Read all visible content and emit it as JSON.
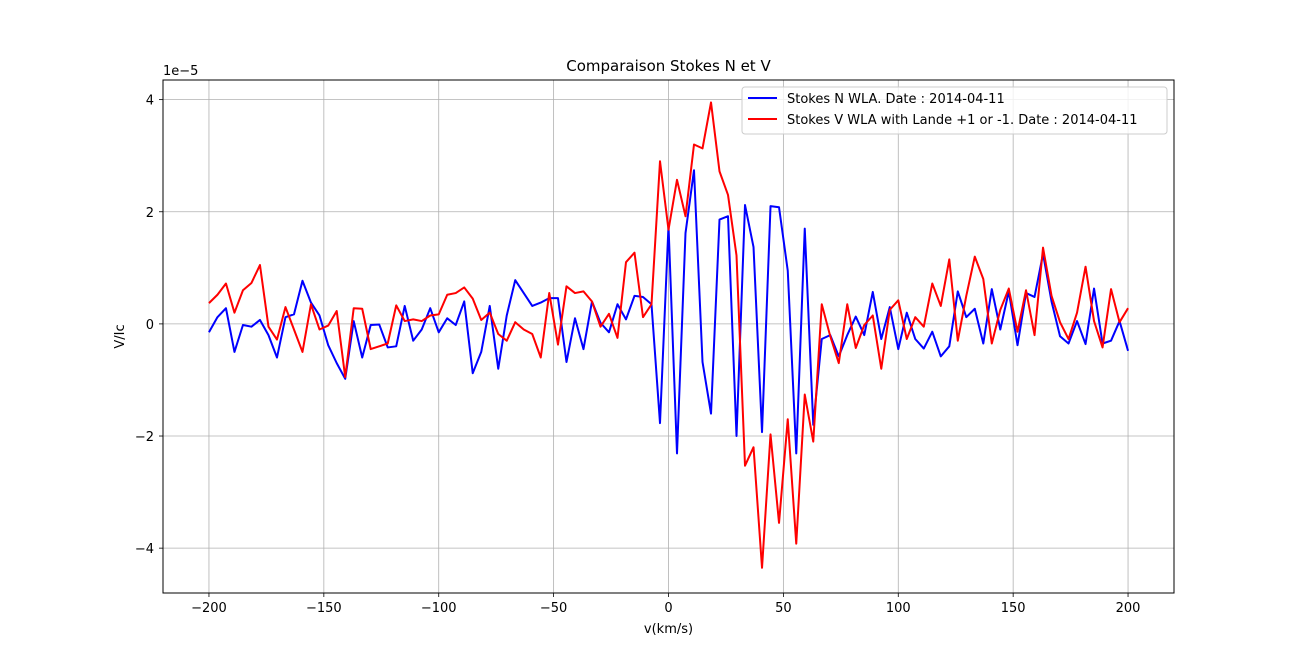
{
  "chart_data": {
    "type": "line",
    "title": "Comparaison Stokes N et V",
    "xlabel": "v(km/s)",
    "ylabel": "V/Ic",
    "y_offset_label": "1e−5",
    "y_multiplier": 1e-05,
    "xlim": [
      -220,
      220
    ],
    "ylim": [
      -4.8,
      4.35
    ],
    "xticks": [
      -200,
      -150,
      -100,
      -50,
      0,
      50,
      100,
      150,
      200
    ],
    "yticks": [
      -4,
      -2,
      0,
      2,
      4
    ],
    "grid": true,
    "legend_position": "upper right",
    "series": [
      {
        "name": "Stokes N WLA. Date : 2014-04-11",
        "color": "#0000ff",
        "x": [
          -200,
          -196.3,
          -192.6,
          -188.9,
          -185.2,
          -181.5,
          -177.8,
          -174.1,
          -170.4,
          -166.7,
          -163,
          -159.3,
          -155.6,
          -151.9,
          -148.1,
          -144.4,
          -140.7,
          -137,
          -133.3,
          -129.6,
          -125.9,
          -122.2,
          -118.5,
          -114.8,
          -111.1,
          -107.4,
          -103.7,
          -100,
          -96.3,
          -92.6,
          -88.9,
          -85.2,
          -81.5,
          -77.8,
          -74.1,
          -70.4,
          -66.7,
          -63,
          -59.3,
          -55.6,
          -51.9,
          -48.1,
          -44.4,
          -40.7,
          -37,
          -33.3,
          -29.6,
          -25.9,
          -22.2,
          -18.5,
          -14.8,
          -11.1,
          -7.4,
          -3.7,
          0,
          3.7,
          7.4,
          11.1,
          14.8,
          18.5,
          22.2,
          25.9,
          29.6,
          33.3,
          37,
          40.7,
          44.4,
          48.1,
          51.9,
          55.6,
          59.3,
          63,
          66.7,
          70.4,
          74.1,
          77.8,
          81.5,
          85.2,
          88.9,
          92.6,
          96.3,
          100,
          103.7,
          107.4,
          111.1,
          114.8,
          118.5,
          122.2,
          125.9,
          129.6,
          133.3,
          137,
          140.7,
          144.4,
          148.1,
          151.9,
          155.6,
          159.3,
          163,
          166.7,
          170.4,
          174.1,
          177.8,
          181.5,
          185.2,
          188.9,
          192.6,
          196.3,
          200
        ],
        "values": [
          -0.15,
          0.12,
          0.28,
          -0.5,
          -0.02,
          -0.05,
          0.07,
          -0.2,
          -0.6,
          0.12,
          0.17,
          0.77,
          0.38,
          0.15,
          -0.38,
          -0.7,
          -0.98,
          0.05,
          -0.6,
          -0.02,
          -0.01,
          -0.42,
          -0.4,
          0.32,
          -0.3,
          -0.1,
          0.28,
          -0.15,
          0.1,
          -0.02,
          0.4,
          -0.88,
          -0.5,
          0.32,
          -0.8,
          0.15,
          0.78,
          0.55,
          0.32,
          0.38,
          0.46,
          0.46,
          -0.68,
          0.1,
          -0.45,
          0.4,
          0.02,
          -0.15,
          0.35,
          0.08,
          0.5,
          0.48,
          0.35,
          -1.77,
          1.75,
          -2.31,
          1.62,
          2.74,
          -0.68,
          -1.6,
          1.86,
          1.92,
          -2,
          2.12,
          1.37,
          -1.93,
          2.1,
          2.08,
          0.95,
          -2.31,
          1.7,
          -1.8,
          -0.27,
          -0.2,
          -0.58,
          -0.2,
          0.13,
          -0.2,
          0.57,
          -0.27,
          0.3,
          -0.45,
          0.2,
          -0.27,
          -0.44,
          -0.14,
          -0.58,
          -0.4,
          0.58,
          0.12,
          0.27,
          -0.35,
          0.62,
          -0.1,
          0.58,
          -0.38,
          0.55,
          0.48,
          1.25,
          0.4,
          -0.22,
          -0.35,
          0.05,
          -0.36,
          0.63,
          -0.35,
          -0.3,
          0.05,
          -0.48
        ]
      },
      {
        "name": "Stokes V WLA with Lande +1 or -1. Date : 2014-04-11",
        "color": "#ff0000",
        "x": [
          -200,
          -196.3,
          -192.6,
          -188.9,
          -185.2,
          -181.5,
          -177.8,
          -174.1,
          -170.4,
          -166.7,
          -163,
          -159.3,
          -155.6,
          -151.9,
          -148.1,
          -144.4,
          -140.7,
          -137,
          -133.3,
          -129.6,
          -125.9,
          -122.2,
          -118.5,
          -114.8,
          -111.1,
          -107.4,
          -103.7,
          -100,
          -96.3,
          -92.6,
          -88.9,
          -85.2,
          -81.5,
          -77.8,
          -74.1,
          -70.4,
          -66.7,
          -63,
          -59.3,
          -55.6,
          -51.9,
          -48.1,
          -44.4,
          -40.7,
          -37,
          -33.3,
          -29.6,
          -25.9,
          -22.2,
          -18.5,
          -14.8,
          -11.1,
          -7.4,
          -3.7,
          0,
          3.7,
          7.4,
          11.1,
          14.8,
          18.5,
          22.2,
          25.9,
          29.6,
          33.3,
          37,
          40.7,
          44.4,
          48.1,
          51.9,
          55.6,
          59.3,
          63,
          66.7,
          70.4,
          74.1,
          77.8,
          81.5,
          85.2,
          88.9,
          92.6,
          96.3,
          100,
          103.7,
          107.4,
          111.1,
          114.8,
          118.5,
          122.2,
          125.9,
          129.6,
          133.3,
          137,
          140.7,
          144.4,
          148.1,
          151.9,
          155.6,
          159.3,
          163,
          166.7,
          170.4,
          174.1,
          177.8,
          181.5,
          185.2,
          188.9,
          192.6,
          196.3,
          200
        ],
        "values": [
          0.37,
          0.52,
          0.72,
          0.2,
          0.6,
          0.73,
          1.05,
          -0.05,
          -0.28,
          0.3,
          -0.1,
          -0.5,
          0.35,
          -0.1,
          -0.03,
          0.23,
          -0.95,
          0.28,
          0.27,
          -0.45,
          -0.4,
          -0.35,
          0.33,
          0.05,
          0.08,
          0.05,
          0.15,
          0.17,
          0.52,
          0.55,
          0.65,
          0.45,
          0.07,
          0.2,
          -0.18,
          -0.3,
          0.03,
          -0.1,
          -0.18,
          -0.6,
          0.55,
          -0.37,
          0.67,
          0.55,
          0.58,
          0.4,
          -0.05,
          0.18,
          -0.25,
          1.1,
          1.27,
          0.12,
          0.35,
          2.9,
          1.68,
          2.57,
          1.92,
          3.2,
          3.13,
          3.95,
          2.72,
          2.3,
          1.22,
          -2.53,
          -2.2,
          -4.35,
          -1.97,
          -3.55,
          -1.7,
          -3.92,
          -1.26,
          -2.1,
          0.35,
          -0.22,
          -0.7,
          0.35,
          -0.43,
          -0.02,
          0.15,
          -0.8,
          0.25,
          0.42,
          -0.27,
          0.12,
          -0.05,
          0.72,
          0.32,
          1.15,
          -0.3,
          0.5,
          1.2,
          0.8,
          -0.35,
          0.25,
          0.63,
          -0.14,
          0.6,
          -0.2,
          1.36,
          0.5,
          0.03,
          -0.27,
          0.2,
          1.02,
          0.05,
          -0.42,
          0.62,
          0.03,
          0.28
        ]
      }
    ]
  }
}
